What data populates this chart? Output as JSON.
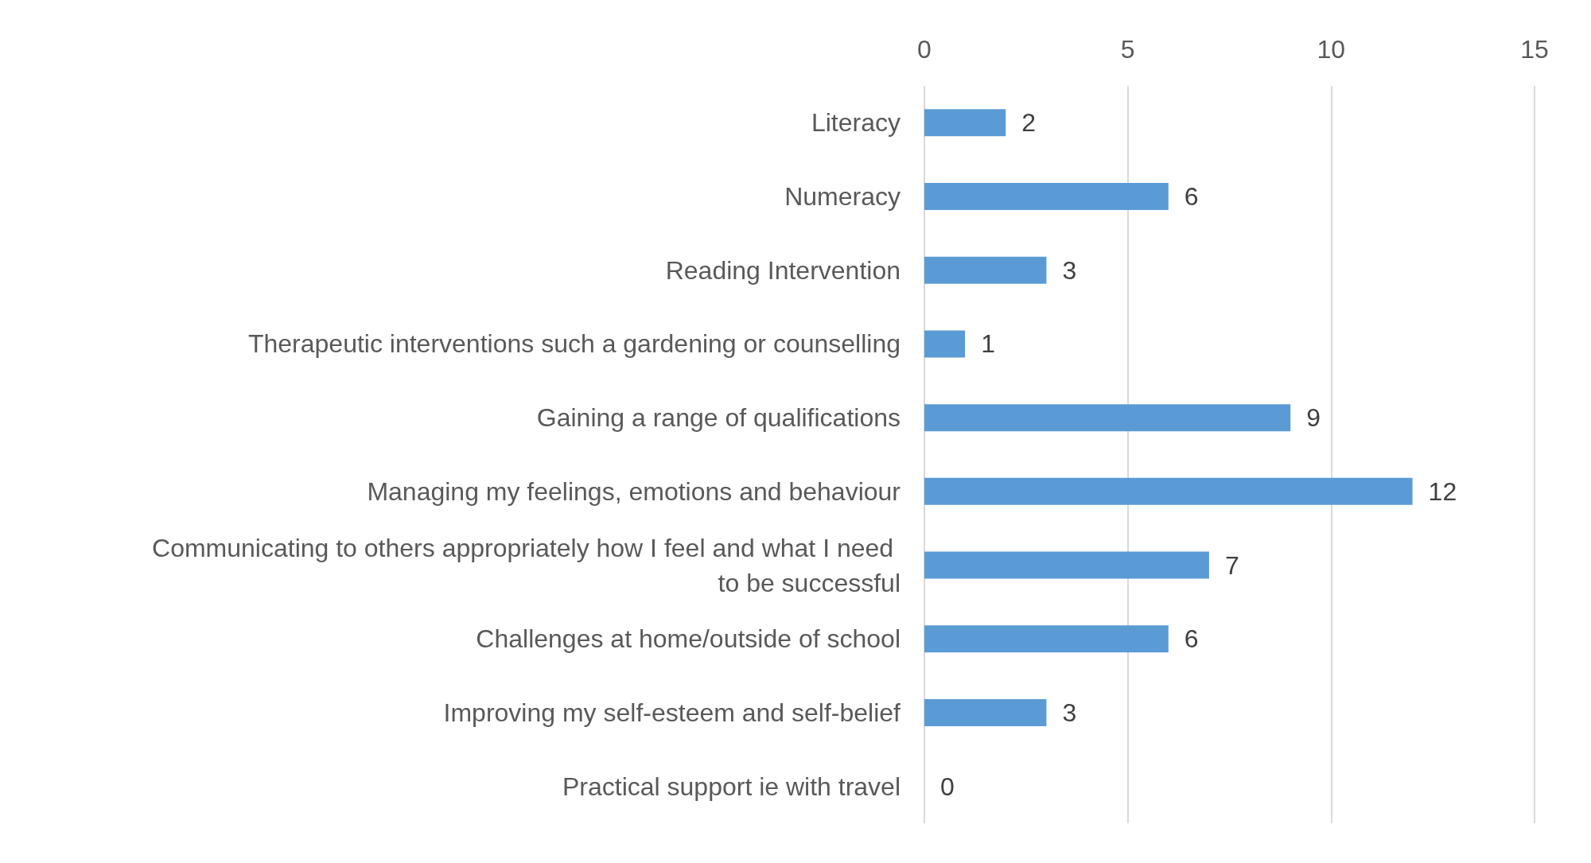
{
  "chart_data": {
    "type": "bar",
    "orientation": "horizontal",
    "categories": [
      "Literacy",
      "Numeracy",
      "Reading Intervention",
      "Therapeutic interventions such a gardening or counselling",
      "Gaining a range of qualifications",
      "Managing my feelings, emotions and behaviour",
      "Communicating to others appropriately how I feel and what I need to be successful",
      "Challenges at home/outside of school",
      "Improving my self-esteem and self-belief",
      "Practical support ie with travel"
    ],
    "values": [
      2,
      6,
      3,
      1,
      9,
      12,
      7,
      6,
      3,
      0
    ],
    "color": "#5b9bd5",
    "xlim": [
      0,
      15
    ],
    "xticks": [
      0,
      5,
      10,
      15
    ],
    "grid": "x",
    "data_labels": true
  }
}
